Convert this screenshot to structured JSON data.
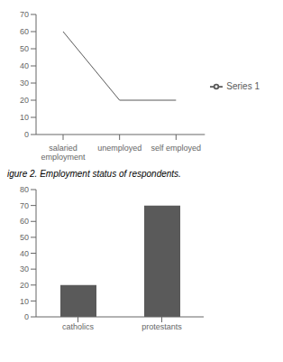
{
  "chart_data": [
    {
      "type": "line",
      "categories": [
        "salaried\nemployment",
        "unemployed",
        "self employed"
      ],
      "series": [
        {
          "name": "Series 1",
          "color": "#595959",
          "values": [
            60,
            20,
            20
          ]
        }
      ],
      "ylim": [
        0,
        70
      ],
      "yticks": [
        0,
        10,
        20,
        30,
        40,
        50,
        60,
        70
      ],
      "grid": false,
      "legend": "right"
    },
    {
      "type": "bar",
      "title": "igure 2. Employment status of respondents.",
      "categories": [
        "catholics",
        "protestants"
      ],
      "values": [
        20,
        70
      ],
      "color": "#5a5a5a",
      "ylim": [
        0,
        80
      ],
      "yticks": [
        0,
        10,
        20,
        30,
        40,
        50,
        60,
        70,
        80
      ],
      "grid": false
    }
  ]
}
